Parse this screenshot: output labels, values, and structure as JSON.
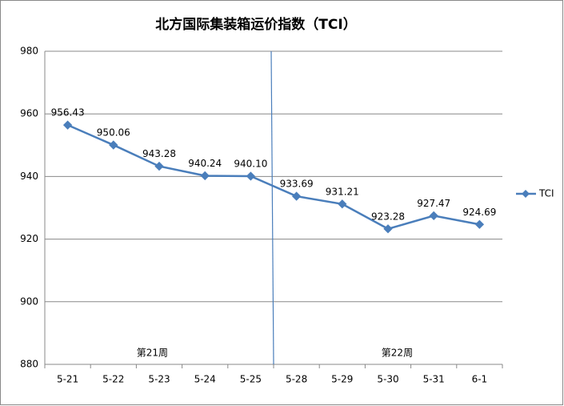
{
  "chart_data": {
    "type": "line",
    "title": "北方国际集装箱运价指数（TCI）",
    "categories": [
      "5-21",
      "5-22",
      "5-23",
      "5-24",
      "5-25",
      "5-28",
      "5-29",
      "5-30",
      "5-31",
      "6-1"
    ],
    "series": [
      {
        "name": "TCI",
        "color": "#4a7ebb",
        "values": [
          956.43,
          950.06,
          943.28,
          940.24,
          940.1,
          933.69,
          931.21,
          923.28,
          927.47,
          924.69
        ],
        "value_labels": [
          "956.43",
          "950.06",
          "943.28",
          "940.24",
          "940.10",
          "933.69",
          "931.21",
          "923.28",
          "927.47",
          "924.69"
        ]
      }
    ],
    "ylim": [
      880,
      980
    ],
    "yticks": [
      880,
      900,
      920,
      940,
      960,
      980
    ],
    "grid": true,
    "legend": "right",
    "annotations": [
      "第21周",
      "第22周"
    ]
  }
}
